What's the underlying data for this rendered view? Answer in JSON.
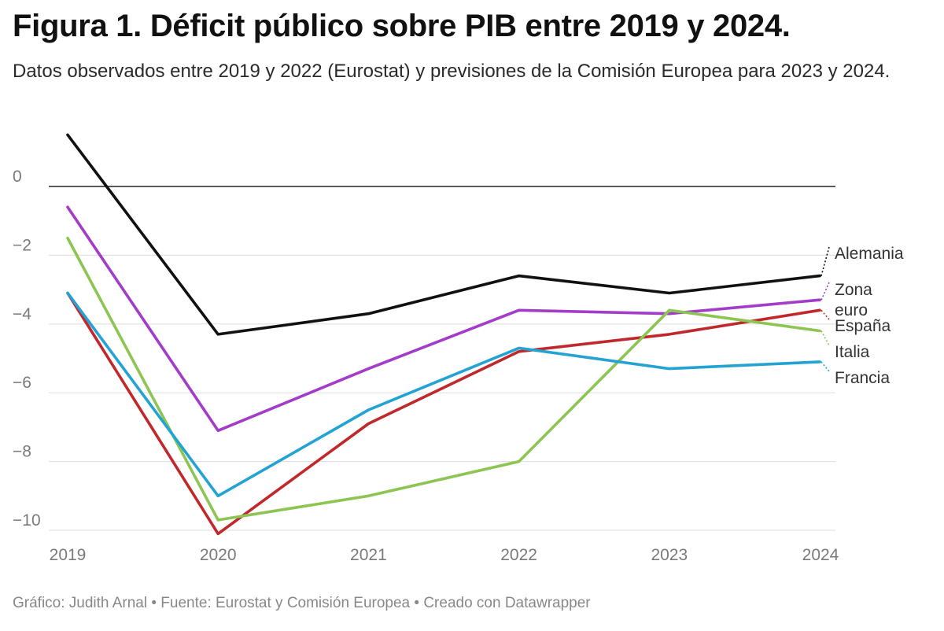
{
  "title": "Figura 1. Déficit público sobre PIB entre 2019 y 2024.",
  "subtitle": "Datos observados entre 2019 y 2022 (Eurostat) y previsiones de la Comisión Europea para 2023 y 2024.",
  "footer": "Gráfico: Judith Arnal • Fuente: Eurostat y Comisión Europea • Creado con Datawrapper",
  "chart_data": {
    "type": "line",
    "title": "Figura 1. Déficit público sobre PIB entre 2019 y 2024.",
    "xlabel": "",
    "ylabel": "",
    "x": [
      "2019",
      "2020",
      "2021",
      "2022",
      "2023",
      "2024"
    ],
    "y_ticks": [
      0,
      -2,
      -4,
      -6,
      -8,
      -10
    ],
    "y_tick_labels": [
      "0",
      "−2",
      "−4",
      "−6",
      "−8",
      "−10"
    ],
    "ylim": [
      -10,
      1.5
    ],
    "grid": true,
    "legend": "direct labels at right end of lines",
    "series": [
      {
        "name": "Alemania",
        "color": "#111111",
        "values": [
          1.5,
          -4.3,
          -3.7,
          -2.6,
          -3.1,
          -2.6
        ]
      },
      {
        "name": "Zona euro",
        "color": "#a23cc9",
        "values": [
          -0.6,
          -7.1,
          -5.3,
          -3.6,
          -3.7,
          -3.3
        ]
      },
      {
        "name": "España",
        "color": "#c0282b",
        "values": [
          -3.1,
          -10.1,
          -6.9,
          -4.8,
          -4.3,
          -3.6
        ]
      },
      {
        "name": "Italia",
        "color": "#8dc553",
        "values": [
          -1.5,
          -9.7,
          -9.0,
          -8.0,
          -3.6,
          -4.2
        ]
      },
      {
        "name": "Francia",
        "color": "#23a3d3",
        "values": [
          -3.1,
          -9.0,
          -6.5,
          -4.7,
          -5.3,
          -5.1
        ]
      }
    ]
  }
}
